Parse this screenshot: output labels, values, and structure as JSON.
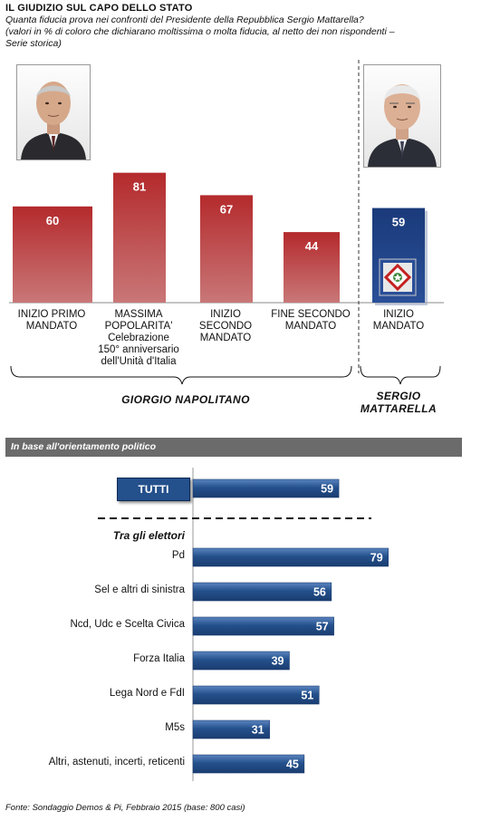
{
  "header": {
    "title": "IL GIUDIZIO SUL CAPO DELLO STATO",
    "subtitle_lines": [
      "Quanta fiducia prova nei confronti del Presidente della Repubblica Sergio Mattarella?",
      "(valori in % di coloro che dichiarano moltissima o molta fiducia, al netto dei non rispondenti –",
      "Serie storica)"
    ]
  },
  "section_banner": "In base all'orientamento politico",
  "footer": {
    "source": "Fonte: Sondaggio Demos & Pi, Febbraio 2015 (base: 800 casi)"
  },
  "chart_data": [
    {
      "type": "bar",
      "categories": [
        "INIZIO PRIMO MANDATO",
        "MASSIMA POPOLARITA' Celebrazione 150° anniversario dell'Unità d'Italia",
        "INIZIO SECONDO MANDATO",
        "FINE SECONDO MANDATO",
        "INIZIO MANDATO"
      ],
      "category_lines": [
        [
          "INIZIO PRIMO",
          "MANDATO"
        ],
        [
          "MASSIMA",
          "POPOLARITA'",
          "Celebrazione",
          "150° anniversario",
          "dell'Unità d'Italia"
        ],
        [
          "INIZIO",
          "SECONDO",
          "MANDATO"
        ],
        [
          "FINE SECONDO",
          "MANDATO"
        ],
        [
          "INIZIO",
          "MANDATO"
        ]
      ],
      "values": [
        60,
        81,
        67,
        44,
        59
      ],
      "groups": [
        {
          "name": "GIORGIO  NAPOLITANO",
          "categories": [
            0,
            1,
            2,
            3
          ]
        },
        {
          "name_lines": [
            "SERGIO",
            "MATTARELLA"
          ],
          "categories": [
            4
          ]
        }
      ],
      "colors": {
        "napolitano": "#9e1a1c",
        "mattarella": "#1a3a7a"
      },
      "ylim": [
        0,
        100
      ]
    },
    {
      "type": "bar",
      "orientation": "horizontal",
      "total": {
        "label": "TUTTI",
        "value": 59
      },
      "group_label": "Tra gli elettori",
      "categories": [
        "Pd",
        "Sel e altri di sinistra",
        "Ncd, Udc e Scelta Civica",
        "Forza Italia",
        "Lega Nord e FdI",
        "M5s",
        "Altri, astenuti, incerti, reticenti"
      ],
      "values": [
        79,
        56,
        57,
        39,
        51,
        31,
        45
      ],
      "colors": {
        "bar": "#24508c"
      },
      "xlim": [
        0,
        100
      ]
    }
  ]
}
